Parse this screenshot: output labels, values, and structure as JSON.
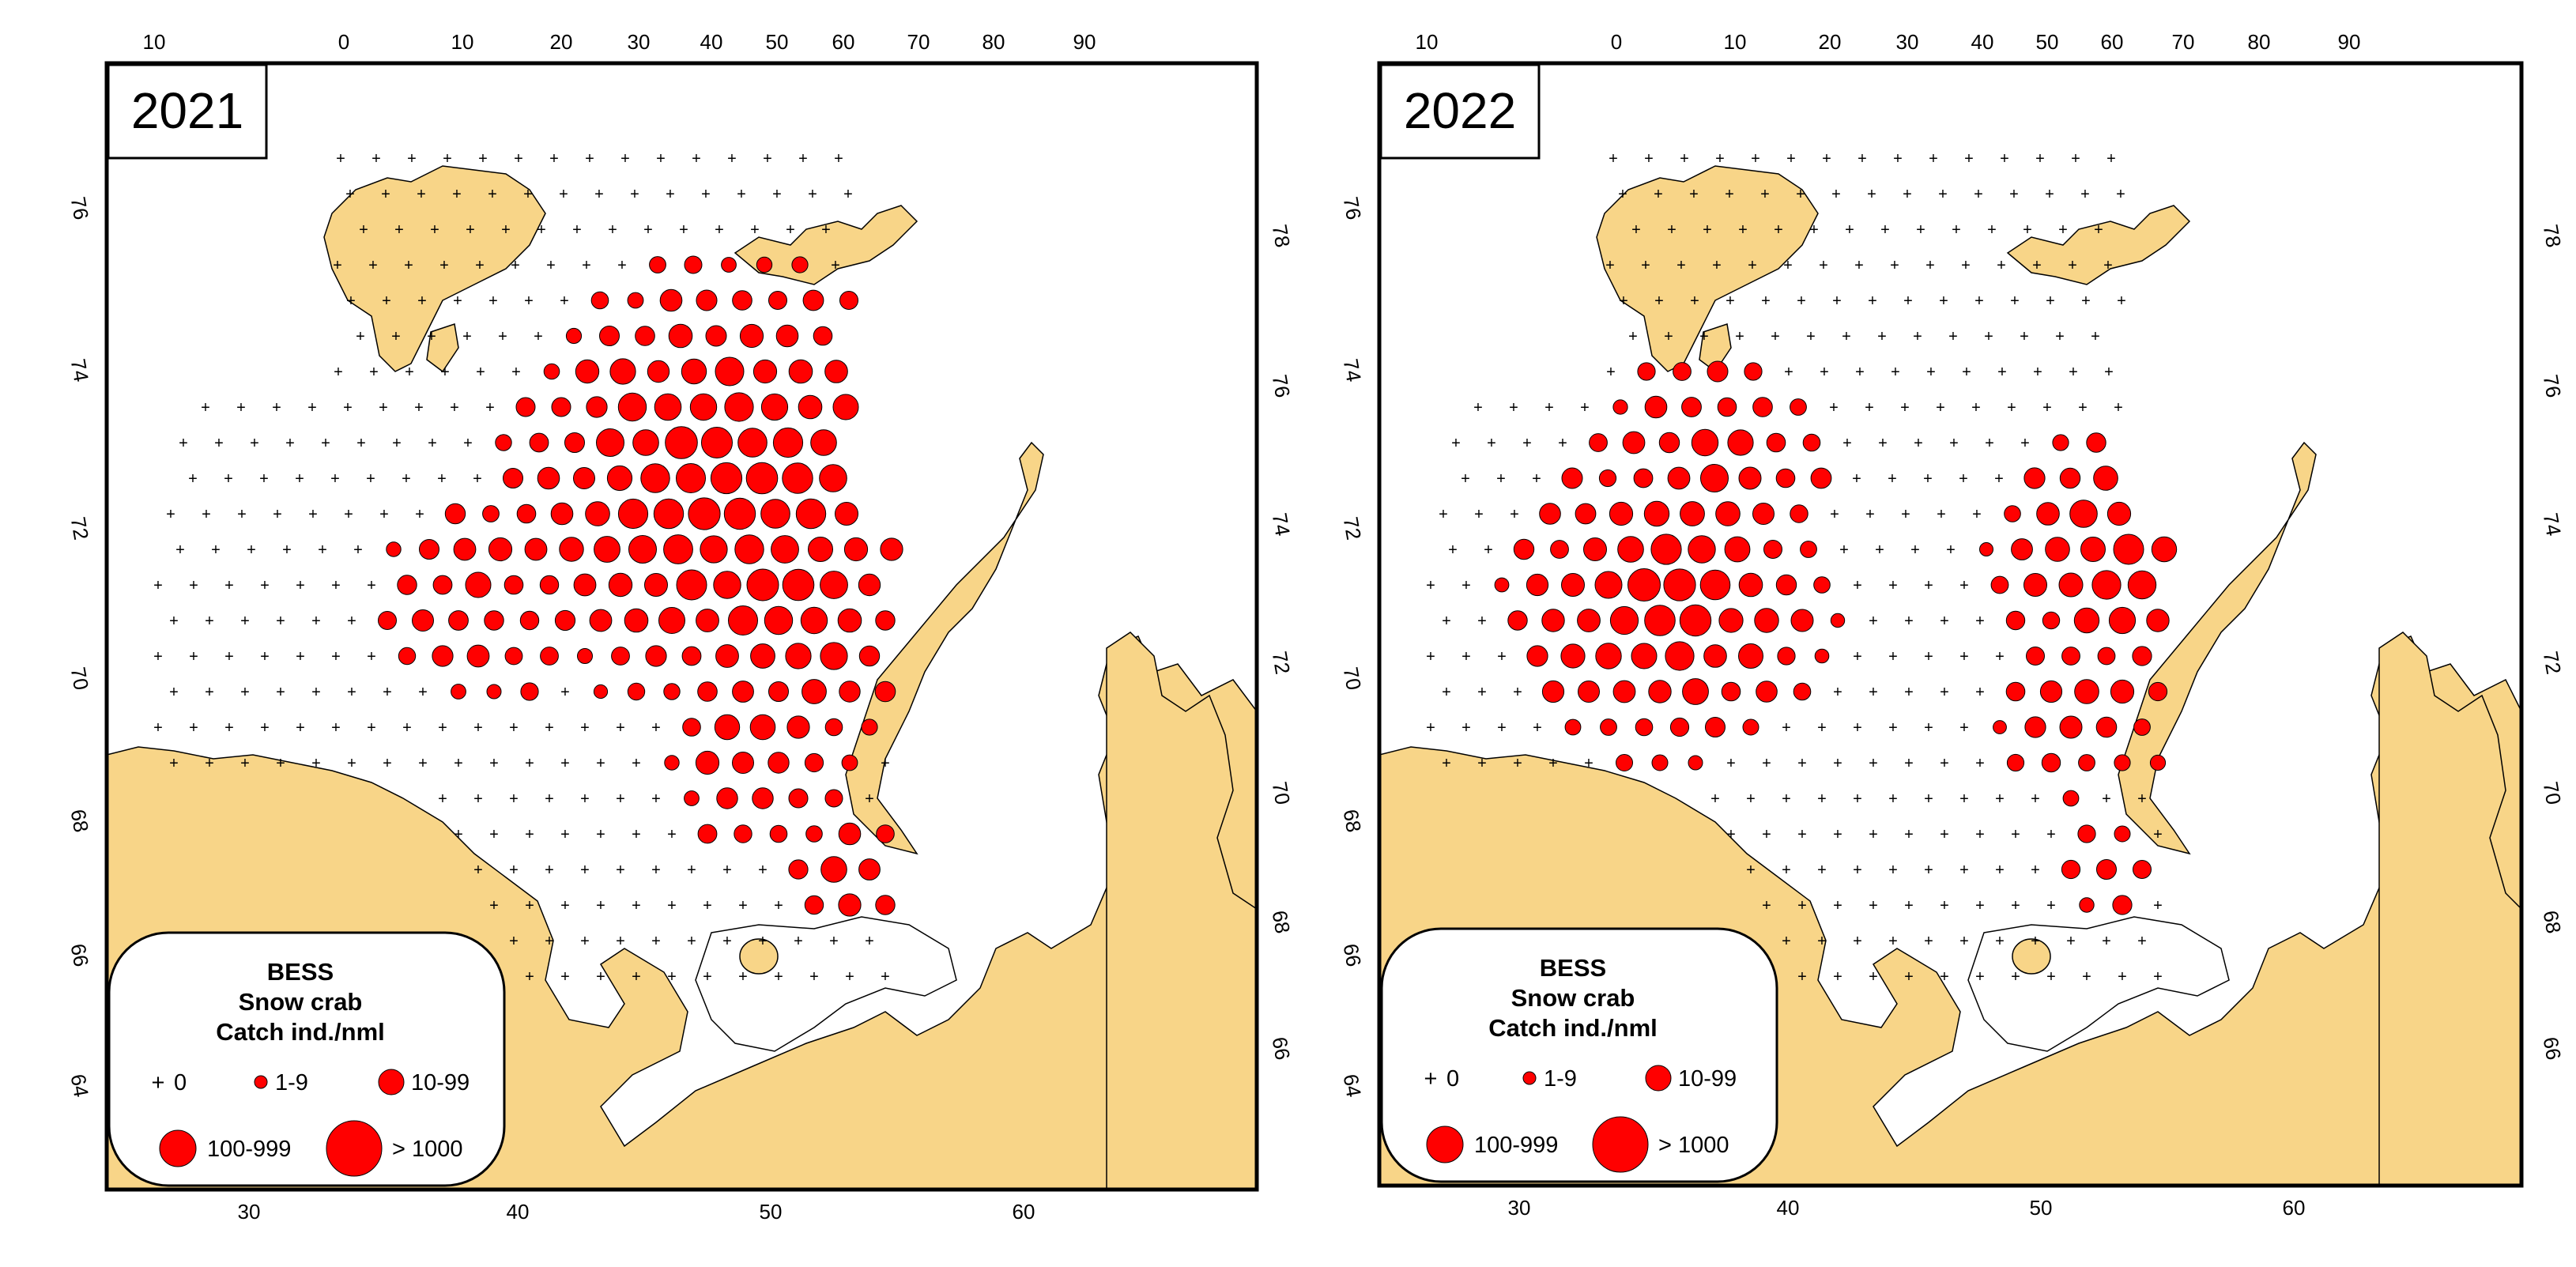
{
  "colors": {
    "land": "#f8d588",
    "sea": "#ffffff",
    "catch": "#ff0000",
    "frame": "#000000"
  },
  "legend": {
    "title1": "BESS",
    "title2": "Snow crab",
    "title3": "Catch ind./nml",
    "classes": [
      "0",
      "1-9",
      "10-99",
      "100-999",
      "> 1000"
    ]
  },
  "panels": [
    {
      "year": "2021",
      "top_ticks": [
        "10",
        "0",
        "10",
        "20",
        "30",
        "40",
        "50",
        "60",
        "70",
        "80",
        "90"
      ],
      "bottom_ticks": [
        "30",
        "40",
        "50",
        "60"
      ],
      "left_ticks": [
        "76",
        "74",
        "72",
        "70",
        "68",
        "66",
        "64"
      ],
      "right_ticks": [
        "78",
        "76",
        "74",
        "72",
        "70",
        "68",
        "66"
      ]
    },
    {
      "year": "2022",
      "top_ticks": [
        "10",
        "0",
        "10",
        "20",
        "30",
        "40",
        "50",
        "60",
        "70",
        "80",
        "90"
      ],
      "bottom_ticks": [
        "30",
        "40",
        "50",
        "60"
      ],
      "left_ticks": [
        "76",
        "74",
        "72",
        "70",
        "68",
        "66",
        "64"
      ],
      "right_ticks": [
        "78",
        "76",
        "74",
        "72",
        "70",
        "68",
        "66"
      ]
    }
  ]
}
